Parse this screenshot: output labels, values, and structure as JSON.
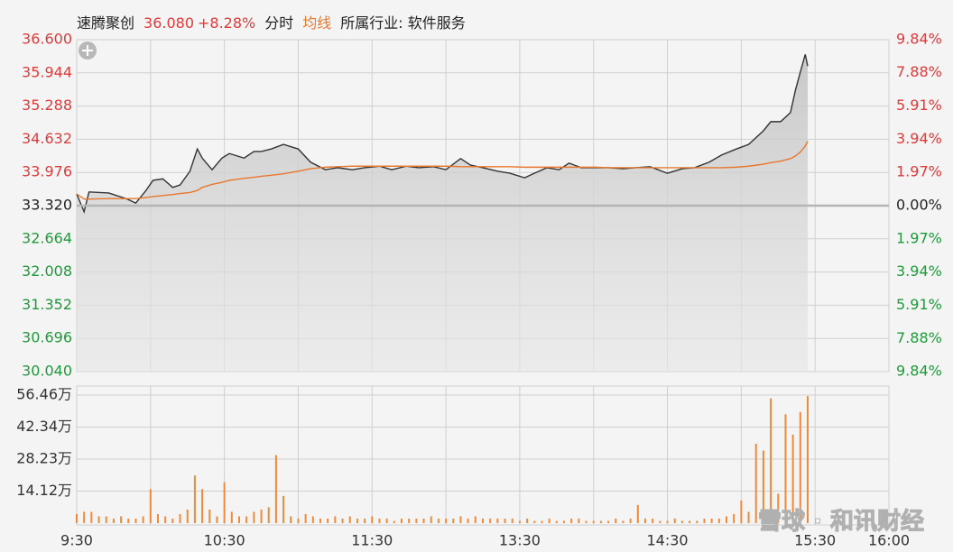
{
  "chart_data": [
    {
      "type": "line",
      "title": "速腾聚创",
      "price_label": "36.080",
      "change_label": "+8.28%",
      "industry": "所属行业: 软件服务",
      "x": [
        0,
        3,
        5,
        13,
        20,
        24,
        28,
        31,
        35,
        39,
        42,
        46,
        49,
        51,
        55,
        59,
        62,
        68,
        72,
        75,
        79,
        84,
        90,
        95,
        101,
        106,
        112,
        117,
        123,
        128,
        134,
        139,
        145,
        150,
        156,
        160,
        165,
        171,
        176,
        182,
        185,
        191,
        196,
        200,
        205,
        211,
        216,
        222,
        227,
        233,
        240,
        246,
        251,
        257,
        262,
        268,
        273,
        279,
        282,
        286,
        290,
        292,
        294,
        296,
        297
      ],
      "series": [
        {
          "name": "分时",
          "color": "#333333",
          "values": [
            33.55,
            33.2,
            33.59,
            33.57,
            33.46,
            33.37,
            33.61,
            33.82,
            33.85,
            33.68,
            33.73,
            34.0,
            34.44,
            34.26,
            34.03,
            34.26,
            34.35,
            34.26,
            34.39,
            34.39,
            34.44,
            34.53,
            34.44,
            34.18,
            34.03,
            34.07,
            34.03,
            34.07,
            34.1,
            34.03,
            34.1,
            34.07,
            34.09,
            34.03,
            34.25,
            34.12,
            34.07,
            34.0,
            33.96,
            33.87,
            33.94,
            34.07,
            34.03,
            34.16,
            34.07,
            34.07,
            34.07,
            34.05,
            34.07,
            34.09,
            33.96,
            34.05,
            34.07,
            34.18,
            34.32,
            34.44,
            34.53,
            34.8,
            34.98,
            34.98,
            35.16,
            35.6,
            35.96,
            36.31,
            36.08
          ]
        },
        {
          "name": "均线",
          "color": "#e8772e",
          "values": [
            33.55,
            33.45,
            33.45,
            33.46,
            33.46,
            33.46,
            33.48,
            33.5,
            33.52,
            33.54,
            33.56,
            33.58,
            33.62,
            33.68,
            33.74,
            33.78,
            33.82,
            33.86,
            33.88,
            33.9,
            33.92,
            33.95,
            34.0,
            34.05,
            34.08,
            34.09,
            34.1,
            34.1,
            34.1,
            34.1,
            34.1,
            34.1,
            34.1,
            34.1,
            34.09,
            34.09,
            34.09,
            34.09,
            34.09,
            34.08,
            34.08,
            34.08,
            34.08,
            34.08,
            34.08,
            34.08,
            34.07,
            34.07,
            34.07,
            34.07,
            34.07,
            34.07,
            34.07,
            34.07,
            34.07,
            34.08,
            34.1,
            34.14,
            34.17,
            34.2,
            34.25,
            34.3,
            34.38,
            34.5,
            34.59
          ]
        }
      ],
      "prev_close": 33.32,
      "ylim": [
        30.04,
        36.6
      ],
      "yticks": [
        {
          "value": 36.6,
          "label": "36.600"
        },
        {
          "value": 35.944,
          "label": "35.944"
        },
        {
          "value": 35.288,
          "label": "35.288"
        },
        {
          "value": 34.632,
          "label": "34.632"
        },
        {
          "value": 33.976,
          "label": "33.976"
        },
        {
          "value": 33.32,
          "label": "33.320"
        },
        {
          "value": 32.664,
          "label": "32.664"
        },
        {
          "value": 32.008,
          "label": "32.008"
        },
        {
          "value": 31.352,
          "label": "31.352"
        },
        {
          "value": 30.696,
          "label": "30.696"
        },
        {
          "value": 30.04,
          "label": "30.040"
        }
      ],
      "y2lim": [
        -9.84,
        9.84
      ],
      "y2ticks": [
        {
          "value": 9.84,
          "label": "9.84%"
        },
        {
          "value": 7.88,
          "label": "7.88%"
        },
        {
          "value": 5.91,
          "label": "5.91%"
        },
        {
          "value": 3.94,
          "label": "3.94%"
        },
        {
          "value": 1.97,
          "label": "1.97%"
        },
        {
          "value": 0,
          "label": "0.00%"
        },
        {
          "value": -1.97,
          "label": "1.97%"
        },
        {
          "value": -3.94,
          "label": "3.94%"
        },
        {
          "value": -5.91,
          "label": "5.91%"
        },
        {
          "value": -7.88,
          "label": "7.88%"
        },
        {
          "value": -9.84,
          "label": "9.84%"
        }
      ],
      "up_color": "#e03a3a",
      "down_color": "#1f9a3a",
      "flat_color": "#222222",
      "grid": true
    },
    {
      "type": "bar",
      "color": "#f08a3a",
      "x": [
        0,
        3,
        6,
        9,
        12,
        15,
        18,
        21,
        24,
        27,
        30,
        33,
        36,
        39,
        42,
        45,
        48,
        51,
        54,
        57,
        60,
        63,
        66,
        69,
        72,
        75,
        78,
        81,
        84,
        87,
        90,
        93,
        96,
        99,
        102,
        105,
        108,
        111,
        114,
        117,
        120,
        123,
        126,
        129,
        132,
        135,
        138,
        141,
        144,
        147,
        150,
        153,
        156,
        159,
        162,
        165,
        168,
        171,
        174,
        177,
        180,
        183,
        186,
        189,
        192,
        195,
        198,
        201,
        204,
        207,
        210,
        213,
        216,
        219,
        222,
        225,
        228,
        231,
        234,
        237,
        240,
        243,
        246,
        249,
        252,
        255,
        258,
        261,
        264,
        267,
        270,
        273,
        276,
        279,
        282,
        285,
        288,
        291,
        294,
        297
      ],
      "values": [
        4,
        5,
        5,
        3,
        3,
        2,
        3,
        2,
        2,
        3,
        15,
        4,
        3,
        2,
        4,
        6,
        21,
        15,
        6,
        3,
        18,
        5,
        3,
        3,
        5,
        6,
        7,
        30,
        12,
        3,
        2,
        4,
        3,
        2,
        2,
        3,
        2,
        3,
        2,
        2,
        3,
        2,
        2,
        1,
        2,
        2,
        2,
        2,
        3,
        2,
        2,
        2,
        3,
        2,
        3,
        2,
        2,
        2,
        2,
        2,
        1,
        2,
        1,
        1,
        2,
        1,
        1,
        2,
        2,
        1,
        1,
        1,
        1,
        2,
        1,
        2,
        8,
        2,
        2,
        1,
        1,
        2,
        1,
        1,
        1,
        2,
        2,
        2,
        3,
        4,
        10,
        5,
        35,
        32,
        55,
        13,
        48,
        39,
        49,
        56
      ],
      "ylim": [
        0,
        56.46
      ],
      "yticks": [
        {
          "value": 56.46,
          "label": "56.46万"
        },
        {
          "value": 42.34,
          "label": "42.34万"
        },
        {
          "value": 28.23,
          "label": "28.23万"
        },
        {
          "value": 14.12,
          "label": "14.12万"
        }
      ],
      "xlim": [
        0,
        330
      ],
      "xticks": [
        {
          "value": 0,
          "label": "9:30"
        },
        {
          "value": 60,
          "label": "10:30"
        },
        {
          "value": 120,
          "label": "11:30"
        },
        {
          "value": 180,
          "label": "13:30"
        },
        {
          "value": 240,
          "label": "14:30"
        },
        {
          "value": 300,
          "label": "15:30"
        },
        {
          "value": 330,
          "label": "16:00"
        }
      ],
      "xgrid": [
        0,
        30,
        60,
        90,
        120,
        150,
        180,
        210,
        240,
        270,
        300,
        330
      ],
      "grid": true,
      "watermark": "雪球 · 和讯财经"
    }
  ]
}
